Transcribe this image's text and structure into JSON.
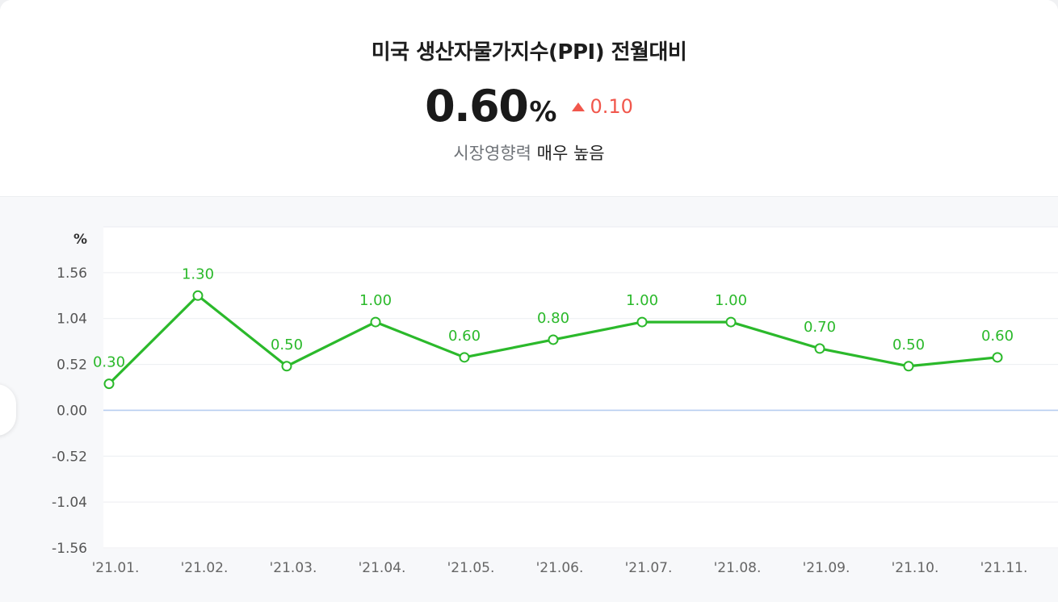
{
  "header": {
    "title": "미국 생산자물가지수(PPI) 전월대비",
    "value": "0.60",
    "unit": "%",
    "change": "0.10",
    "change_direction": "up",
    "impact_label": "시장영향력",
    "impact_level": "매우 높음"
  },
  "colors": {
    "line": "#2bb92b",
    "up": "#f1574c",
    "zero_line": "#b7cdf0",
    "grid": "#eceef1"
  },
  "chart_data": {
    "type": "line",
    "title": "미국 생산자물가지수(PPI) 전월대비",
    "ylabel": "%",
    "y_ticks": [
      "1.56",
      "1.04",
      "0.52",
      "0.00",
      "-0.52",
      "-1.04",
      "-1.56"
    ],
    "ylim": [
      -1.56,
      2.08
    ],
    "categories": [
      "'21.01.",
      "'21.02.",
      "'21.03.",
      "'21.04.",
      "'21.05.",
      "'21.06.",
      "'21.07.",
      "'21.08.",
      "'21.09.",
      "'21.10.",
      "'21.11."
    ],
    "series": [
      {
        "values": [
          0.3,
          1.3,
          0.5,
          1.0,
          0.6,
          0.8,
          1.0,
          1.0,
          0.7,
          0.5,
          0.6
        ],
        "labels": [
          "0.30",
          "1.30",
          "0.50",
          "1.00",
          "0.60",
          "0.80",
          "1.00",
          "1.00",
          "0.70",
          "0.50",
          "0.60"
        ]
      }
    ],
    "grid": true,
    "legend": "none"
  }
}
